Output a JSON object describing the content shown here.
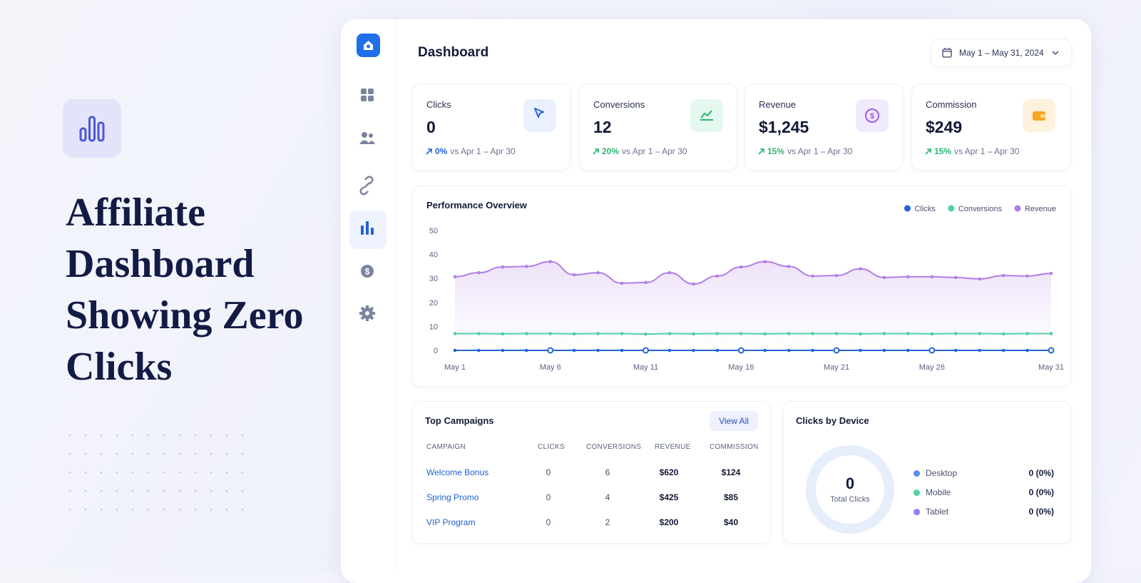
{
  "hero": {
    "title_lines": [
      "Affiliate",
      "Dashboard",
      "Showing Zero",
      "Clicks"
    ]
  },
  "header": {
    "title": "Dashboard",
    "date_range": "May 1 – May 31, 2024"
  },
  "kpis": [
    {
      "label": "Clicks",
      "value": 0,
      "change": "0%",
      "compare": "vs Apr 1 – Apr 30"
    },
    {
      "label": "Conversions",
      "value": 12,
      "change": "20%",
      "compare": "vs Apr 1 – Apr 30"
    },
    {
      "label": "Revenue",
      "value": "$1,245",
      "change": "15%",
      "compare": "vs Apr 1 – Apr 30"
    },
    {
      "label": "Commission",
      "value": "$249",
      "change": "15%",
      "compare": "vs Apr 1 – Apr 30"
    }
  ],
  "chart_data": {
    "type": "line",
    "title": "Performance Overview",
    "categories": [
      "May 1",
      null,
      null,
      null,
      "May 6",
      null,
      null,
      null,
      "May 11",
      null,
      null,
      null,
      "May 16",
      null,
      null,
      null,
      "May 21",
      null,
      null,
      null,
      "May 26",
      null,
      null,
      null,
      null,
      "May 31"
    ],
    "series": [
      {
        "name": "Clicks",
        "color": "#2563d6",
        "values": [
          0,
          0,
          0,
          0,
          0,
          0,
          0,
          0,
          0,
          0,
          0,
          0,
          0,
          0,
          0,
          0,
          0,
          0,
          0,
          0,
          0,
          0,
          0,
          0,
          0,
          0
        ]
      },
      {
        "name": "Conversions",
        "color": "#4fd1a0",
        "values": [
          7,
          7,
          6.9,
          7,
          7,
          6.9,
          7,
          7,
          6.8,
          7,
          6.9,
          7,
          7,
          6.9,
          7,
          7,
          7,
          6.9,
          7,
          7,
          6.9,
          7,
          7,
          6.9,
          7,
          7
        ]
      },
      {
        "name": "Revenue",
        "color": "#b27ee6",
        "values": [
          30.7,
          32.4,
          34.8,
          35,
          37,
          31.5,
          32.4,
          28,
          28.3,
          32.4,
          27.7,
          31,
          34.8,
          37,
          35,
          31,
          31.2,
          34,
          30.4,
          30.7,
          30.7,
          30.4,
          29.8,
          31.2,
          31,
          32.1
        ]
      }
    ],
    "ylim": [
      0,
      50
    ],
    "yticks": [
      0,
      10,
      20,
      30,
      40,
      50
    ],
    "legend": "top-right",
    "grid": false
  },
  "campaigns": {
    "title": "Top Campaigns",
    "button": "View All",
    "columns": [
      "CAMPAIGN",
      "CLICKS",
      "CONVERSIONS",
      "REVENUE",
      "COMMISSION"
    ],
    "rows": [
      [
        "Welcome Bonus",
        0,
        6,
        "$620",
        "$124"
      ],
      [
        "Spring Promo",
        0,
        4,
        "$425",
        "$85"
      ],
      [
        "VIP Program",
        0,
        2,
        "$200",
        "$40"
      ]
    ]
  },
  "devices": {
    "title": "Clicks by Device",
    "total": 0,
    "total_label": "Total Clicks",
    "items": [
      {
        "name": "Desktop",
        "color": "#5b8def",
        "value": "0 (0%)"
      },
      {
        "name": "Mobile",
        "color": "#4fd1a0",
        "value": "0 (0%)"
      },
      {
        "name": "Tablet",
        "color": "#9d7ce8",
        "value": "0 (0%)"
      }
    ]
  }
}
